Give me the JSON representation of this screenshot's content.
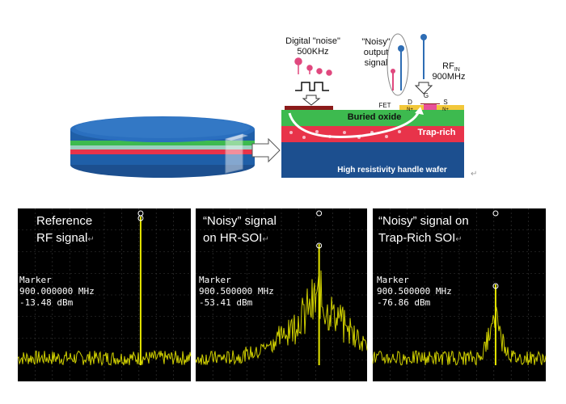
{
  "diagram": {
    "digital_noise_label": "Digital \"noise\"",
    "digital_noise_freq": "500KHz",
    "noisy_output_label_1": "\"Noisy\"",
    "noisy_output_label_2": "output",
    "noisy_output_label_3": "signal",
    "rf_in_label_main": "RF",
    "rf_in_label_sub": "IN",
    "rf_in_freq": "900MHz",
    "fet_label": "FET",
    "drain_label": "D",
    "gate_label": "G",
    "source_label": "S",
    "n_plus_label": "N+",
    "buried_oxide_label": "Buried oxide",
    "trap_rich_label": "Trap-rich",
    "handle_wafer_label": "High resistivity handle wafer",
    "return_mark": "↵",
    "colors": {
      "wafer_blue": "#1f5fa8",
      "green_layer": "#3dba4f",
      "trap_rich_red": "#e8334a",
      "noise_pink": "#e0487e",
      "output_blue": "#2e6db4"
    }
  },
  "panels": [
    {
      "title_line1": "Reference",
      "title_line2": "RF signal",
      "marker_label": "Marker",
      "marker_freq": "900.000000 MHz",
      "marker_power": "-13.48 dBm",
      "return_mark": "↵"
    },
    {
      "title_line1": "“Noisy” signal",
      "title_line2": "on HR-SOI",
      "marker_label": "Marker",
      "marker_freq": "900.500000 MHz",
      "marker_power": "-53.41 dBm",
      "return_mark": "↵"
    },
    {
      "title_line1": "“Noisy” signal on",
      "title_line2": "Trap-Rich SOI",
      "marker_label": "Marker",
      "marker_freq": "900.500000 MHz",
      "marker_power": "-76.86 dBm",
      "return_mark": "↵"
    }
  ],
  "spectrum_colors": {
    "trace": "#e6e600",
    "background": "#000000",
    "grid": "#3a3a3a"
  }
}
